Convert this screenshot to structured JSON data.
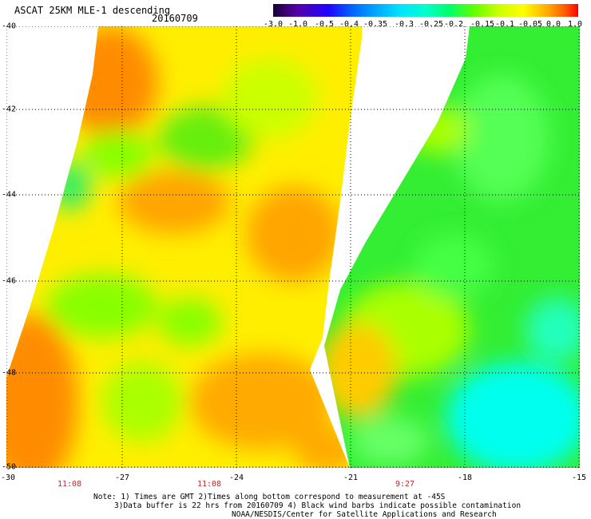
{
  "header": {
    "title": "ASCAT 25KM MLE-1 descending",
    "date": "20160709"
  },
  "colorbar": {
    "ticks": [
      "-3.0",
      "-1.0",
      "-0.5",
      "-0.4",
      "-0.35",
      "-0.3",
      "-0.25",
      "-0.2",
      "-0.15",
      "-0.1",
      "-0.05",
      "0.0",
      "1.0"
    ],
    "colors": [
      "#1a0033",
      "#5500aa",
      "#2200ff",
      "#0066ff",
      "#00aaff",
      "#00e5ff",
      "#00ffcc",
      "#00ff66",
      "#66ff00",
      "#ccff00",
      "#ffff00",
      "#ffaa00",
      "#ff5500",
      "#ff0000"
    ]
  },
  "map": {
    "lat_labels": [
      "-40",
      "-42",
      "-44",
      "-46",
      "-48",
      "-50"
    ],
    "lon_labels": [
      "-30",
      "-27",
      "-24",
      "-21",
      "-18",
      "-15"
    ],
    "time_labels": [
      "11:08",
      "11:08",
      "9:27"
    ],
    "colors": {
      "orange": "#ff8c00",
      "yellow": "#ffee00",
      "lime": "#aaff00",
      "green": "#33ee33",
      "cyan": "#00ffee",
      "grid": "#000000"
    }
  },
  "notes": {
    "line1": "Note: 1) Times are GMT 2)Times along bottom correspond to measurement at -45S",
    "line2": "3)Data buffer is 22 hrs from 20160709 4) Black wind barbs indicate possible contamination",
    "line3": "NOAA/NESDIS/Center for Satellite Applications and Research"
  }
}
